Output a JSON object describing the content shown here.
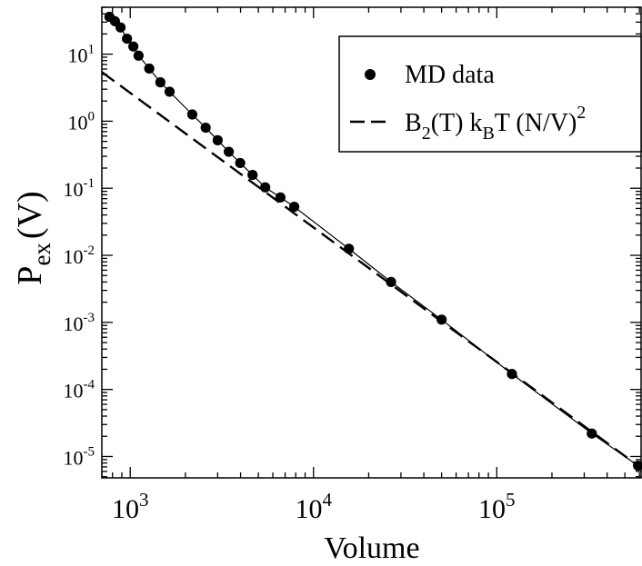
{
  "chart_data": {
    "type": "scatter",
    "xlabel": "Volume",
    "ylabel": {
      "base": "P",
      "sub": "ex",
      "rest": "(V)"
    },
    "xscale": "log",
    "yscale": "log",
    "xlim": [
      700,
      620000
    ],
    "ylim": [
      4.8e-06,
      50
    ],
    "x_ticks": [
      {
        "value": 1000,
        "base": "10",
        "exp": "3"
      },
      {
        "value": 10000,
        "base": "10",
        "exp": "4"
      },
      {
        "value": 100000,
        "base": "10",
        "exp": "5"
      }
    ],
    "y_ticks": [
      {
        "value": 10,
        "base": "10",
        "exp": "1"
      },
      {
        "value": 1,
        "base": "10",
        "exp": "0"
      },
      {
        "value": 0.1,
        "base": "10",
        "exp": "-1"
      },
      {
        "value": 0.01,
        "base": "10",
        "exp": "-2"
      },
      {
        "value": 0.001,
        "base": "10",
        "exp": "-3"
      },
      {
        "value": 0.0001,
        "base": "10",
        "exp": "-4"
      },
      {
        "value": 1e-05,
        "base": "10",
        "exp": "-5"
      }
    ],
    "legend": {
      "position": "top-right",
      "entries": [
        {
          "style": "marker",
          "text": "MD data"
        },
        {
          "style": "dashed",
          "parts": [
            {
              "t": "B"
            },
            {
              "t": "2",
              "sub": true
            },
            {
              "t": "(T) k"
            },
            {
              "t": "B",
              "sub": true
            },
            {
              "t": "T (N/V)"
            },
            {
              "t": "2",
              "sup": true
            }
          ]
        }
      ]
    },
    "series": [
      {
        "name": "MD data",
        "style": "markers+line",
        "x": [
          770,
          825,
          885,
          960,
          1040,
          1110,
          1270,
          1460,
          1640,
          2180,
          2580,
          3000,
          3450,
          3980,
          4650,
          5450,
          6600,
          7850,
          15600,
          26500,
          50000,
          121000,
          330000,
          590000
        ],
        "y": [
          36,
          31,
          25,
          17,
          13,
          9.5,
          6.1,
          3.8,
          2.75,
          1.26,
          0.8,
          0.52,
          0.35,
          0.238,
          0.158,
          0.103,
          0.073,
          0.053,
          0.0125,
          0.004,
          0.0011,
          0.00017,
          2.2e-05,
          7.3e-06
        ]
      },
      {
        "name": "B2(T) kBT (N/V)^2",
        "style": "dashed",
        "x": [
          700,
          620000
        ],
        "y": [
          5.4,
          6.6e-06
        ]
      }
    ],
    "colors": {
      "line": "#000000",
      "marker": "#000000",
      "background": "#ffffff"
    }
  }
}
